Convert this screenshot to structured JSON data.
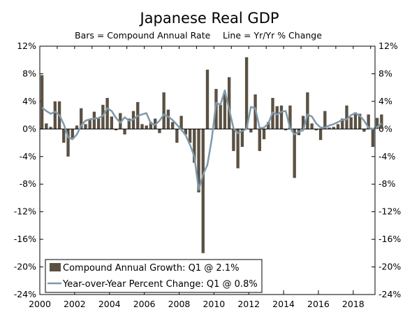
{
  "chart_data": {
    "type": "bar+line",
    "title": "Japanese Real GDP",
    "subtitle_left": "Bars = Compound Annual Rate",
    "subtitle_right": "Line = Yr/Yr % Change",
    "ylim": [
      -24,
      12
    ],
    "yticks": [
      12,
      8,
      4,
      0,
      -4,
      -8,
      -12,
      -16,
      -20,
      -24
    ],
    "ytick_labels": [
      "12%",
      "8%",
      "4%",
      "0%",
      "-4%",
      "-8%",
      "-12%",
      "-16%",
      "-20%",
      "-24%"
    ],
    "xlim": [
      2000,
      2019.25
    ],
    "xticks": [
      2000,
      2002,
      2004,
      2006,
      2008,
      2010,
      2012,
      2014,
      2016,
      2018
    ],
    "xtick_labels": [
      "2000",
      "2002",
      "2004",
      "2006",
      "2008",
      "2010",
      "2012",
      "2014",
      "2016",
      "2018"
    ],
    "x_start": 2000,
    "period": "quarterly",
    "colors": {
      "bars": "#5b5143",
      "line": "#7f99ab",
      "axis": "#000000"
    },
    "series": [
      {
        "name": "Compound Annual Growth: Q1 @ 2.1%",
        "type": "bar",
        "values": [
          7.8,
          0.8,
          0.3,
          4.0,
          4.0,
          -2.0,
          -4.0,
          -1.3,
          0.5,
          3.0,
          0.7,
          1.3,
          2.5,
          1.5,
          3.5,
          4.5,
          1.8,
          -0.2,
          2.3,
          -0.8,
          1.5,
          2.6,
          3.9,
          0.7,
          0.5,
          1.0,
          1.5,
          -0.6,
          5.3,
          2.8,
          1.0,
          -2.0,
          1.9,
          -0.8,
          -2.0,
          -4.9,
          -9.2,
          -18.0,
          8.6,
          0.0,
          5.8,
          3.5,
          5.3,
          7.5,
          -3.2,
          -5.7,
          -2.6,
          10.4,
          -0.5,
          5.0,
          -3.2,
          -1.5,
          1.0,
          4.5,
          3.3,
          3.4,
          -0.2,
          3.4,
          -7.1,
          -0.9,
          1.9,
          5.3,
          0.8,
          -0.2,
          -1.6,
          2.6,
          0.2,
          0.3,
          0.7,
          1.5,
          3.4,
          1.7,
          2.4,
          2.2,
          -0.4,
          2.1,
          -2.6,
          1.6,
          2.1
        ]
      },
      {
        "name": "Year-over-Year Percent Change: Q1 @ 0.8%",
        "type": "line",
        "values": [
          3.1,
          2.6,
          2.2,
          2.5,
          2.0,
          0.7,
          -1.2,
          -1.5,
          -0.8,
          0.5,
          1.2,
          1.4,
          1.5,
          1.6,
          1.9,
          3.0,
          2.6,
          1.6,
          0.9,
          1.7,
          1.2,
          1.4,
          1.9,
          2.1,
          2.3,
          0.8,
          0.6,
          1.2,
          2.1,
          1.8,
          1.3,
          0.6,
          -0.1,
          -0.9,
          -2.3,
          -4.0,
          -8.8,
          -6.6,
          -5.2,
          -1.5,
          3.8,
          3.5,
          5.6,
          2.8,
          0.1,
          -0.6,
          -0.3,
          0.0,
          3.2,
          3.0,
          0.1,
          0.2,
          0.8,
          2.4,
          2.1,
          2.5,
          2.6,
          0.1,
          -0.8,
          -0.4,
          -0.2,
          2.1,
          1.8,
          0.8,
          0.2,
          0.2,
          0.5,
          0.7,
          1.0,
          1.3,
          1.4,
          2.0,
          2.3,
          1.9,
          1.2,
          0.2,
          0.0,
          0.3,
          0.8
        ]
      }
    ],
    "legend": {
      "position": "bottom-left",
      "entries": [
        "Compound Annual Growth: Q1 @ 2.1%",
        "Year-over-Year Percent Change: Q1 @ 0.8%"
      ]
    }
  }
}
